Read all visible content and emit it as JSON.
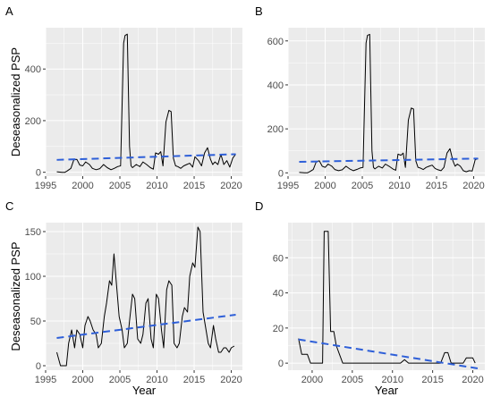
{
  "chart_data": [
    {
      "type": "line",
      "tag": "A",
      "xlabel": "",
      "ylabel": "Deseasonalized PSP",
      "xlim": [
        1995,
        2021.5
      ],
      "ylim": [
        -15,
        560
      ],
      "xticks": [
        1995,
        2000,
        2005,
        2010,
        2015,
        2020
      ],
      "yticks": [
        0,
        200,
        400
      ],
      "series": [
        {
          "x": [
            1996.5,
            1997.2,
            1997.6,
            1997.9,
            1998.4,
            1998.8,
            1999.2,
            1999.6,
            2000.0,
            2000.4,
            2000.9,
            2001.3,
            2001.8,
            2002.3,
            2002.8,
            2003.3,
            2003.8,
            2004.3,
            2004.7,
            2005.1,
            2005.5,
            2005.7,
            2006.0,
            2006.3,
            2006.5,
            2006.7,
            2007.2,
            2007.7,
            2008.1,
            2008.6,
            2009.1,
            2009.5,
            2009.8,
            2010.2,
            2010.5,
            2010.8,
            2011.2,
            2011.6,
            2011.9,
            2012.2,
            2012.5,
            2012.8,
            2013.2,
            2013.6,
            2014.0,
            2014.4,
            2014.8,
            2015.1,
            2015.6,
            2016.0,
            2016.4,
            2016.8,
            2017.2,
            2017.5,
            2017.8,
            2018.2,
            2018.6,
            2019.0,
            2019.4,
            2019.8,
            2020.2,
            2020.6
          ],
          "y": [
            2,
            0,
            0,
            5,
            15,
            48,
            50,
            28,
            25,
            40,
            30,
            15,
            10,
            14,
            30,
            18,
            10,
            16,
            22,
            25,
            500,
            530,
            535,
            100,
            25,
            18,
            30,
            22,
            40,
            30,
            18,
            12,
            75,
            70,
            80,
            25,
            195,
            240,
            235,
            55,
            25,
            22,
            15,
            25,
            30,
            35,
            20,
            60,
            45,
            25,
            75,
            95,
            50,
            30,
            40,
            30,
            70,
            30,
            45,
            20,
            55,
            70
          ]
        }
      ],
      "trend": {
        "x": [
          1996.5,
          2020.6
        ],
        "y": [
          48,
          70
        ],
        "color": "#2E5FD8"
      }
    },
    {
      "type": "line",
      "tag": "B",
      "xlabel": "",
      "ylabel": "",
      "xlim": [
        1995,
        2021.5
      ],
      "ylim": [
        -15,
        660
      ],
      "xticks": [
        1995,
        2000,
        2005,
        2010,
        2015,
        2020
      ],
      "yticks": [
        0,
        200,
        400,
        600
      ],
      "series": [
        {
          "x": [
            1996.5,
            1997.2,
            1997.6,
            1997.9,
            1998.4,
            1998.8,
            1999.2,
            1999.6,
            2000.0,
            2000.4,
            2000.9,
            2001.3,
            2001.8,
            2002.3,
            2002.8,
            2003.3,
            2003.8,
            2004.3,
            2004.7,
            2005.1,
            2005.5,
            2005.7,
            2006.0,
            2006.3,
            2006.5,
            2006.7,
            2007.2,
            2007.7,
            2008.1,
            2008.6,
            2009.1,
            2009.5,
            2009.8,
            2010.2,
            2010.5,
            2010.8,
            2011.2,
            2011.6,
            2011.9,
            2012.2,
            2012.5,
            2012.8,
            2013.2,
            2013.6,
            2014.0,
            2014.4,
            2014.8,
            2015.1,
            2015.6,
            2016.0,
            2016.4,
            2016.8,
            2017.2,
            2017.5,
            2017.8,
            2018.2,
            2018.6,
            2019.0,
            2019.4,
            2019.8,
            2020.2,
            2020.6
          ],
          "y": [
            2,
            0,
            0,
            5,
            15,
            50,
            55,
            30,
            25,
            40,
            30,
            15,
            10,
            14,
            30,
            18,
            10,
            16,
            22,
            25,
            590,
            625,
            630,
            100,
            25,
            18,
            30,
            22,
            40,
            30,
            18,
            12,
            85,
            80,
            90,
            25,
            240,
            295,
            290,
            55,
            25,
            22,
            15,
            25,
            30,
            35,
            20,
            15,
            10,
            25,
            90,
            110,
            55,
            30,
            40,
            30,
            10,
            5,
            10,
            8,
            60,
            65
          ]
        }
      ],
      "trend": {
        "x": [
          1996.5,
          2020.6
        ],
        "y": [
          50,
          65
        ],
        "color": "#2E5FD8"
      }
    },
    {
      "type": "line",
      "tag": "C",
      "xlabel": "Year",
      "ylabel": "Deseasonalized PSP",
      "xlim": [
        1995,
        2021.5
      ],
      "ylim": [
        -5,
        160
      ],
      "xticks": [
        1995,
        2000,
        2005,
        2010,
        2015,
        2020
      ],
      "yticks": [
        0,
        50,
        100,
        150
      ],
      "series": [
        {
          "x": [
            1996.5,
            1997.0,
            1997.3,
            1997.8,
            1998.1,
            1998.5,
            1998.9,
            1999.2,
            1999.6,
            2000.0,
            2000.3,
            2000.7,
            2001.0,
            2001.4,
            2001.8,
            2002.1,
            2002.5,
            2002.9,
            2003.2,
            2003.6,
            2003.9,
            2004.2,
            2004.6,
            2004.9,
            2005.3,
            2005.6,
            2006.0,
            2006.3,
            2006.7,
            2007.0,
            2007.4,
            2007.8,
            2008.1,
            2008.5,
            2008.8,
            2009.2,
            2009.5,
            2009.9,
            2010.2,
            2010.6,
            2010.9,
            2011.3,
            2011.6,
            2012.0,
            2012.3,
            2012.7,
            2013.0,
            2013.4,
            2013.7,
            2014.1,
            2014.4,
            2014.8,
            2015.1,
            2015.5,
            2015.8,
            2016.2,
            2016.5,
            2016.9,
            2017.2,
            2017.6,
            2017.9,
            2018.3,
            2018.6,
            2019.0,
            2019.3,
            2019.7,
            2020.0,
            2020.4
          ],
          "y": [
            15,
            0,
            0,
            0,
            25,
            40,
            20,
            40,
            35,
            20,
            45,
            55,
            50,
            40,
            35,
            20,
            25,
            55,
            70,
            95,
            90,
            125,
            85,
            55,
            40,
            20,
            25,
            50,
            80,
            75,
            30,
            25,
            35,
            70,
            75,
            30,
            20,
            80,
            75,
            40,
            20,
            85,
            95,
            90,
            25,
            20,
            25,
            55,
            65,
            60,
            100,
            115,
            110,
            155,
            150,
            60,
            45,
            25,
            20,
            45,
            30,
            15,
            15,
            20,
            20,
            15,
            20,
            22
          ]
        }
      ],
      "trend": {
        "x": [
          1996.5,
          2020.6
        ],
        "y": [
          31,
          57
        ],
        "color": "#2E5FD8"
      }
    },
    {
      "type": "line",
      "tag": "D",
      "xlabel": "Year",
      "ylabel": "",
      "xlim": [
        1997,
        2021.5
      ],
      "ylim": [
        -4,
        80
      ],
      "xticks": [
        2000,
        2005,
        2010,
        2015,
        2020
      ],
      "yticks": [
        0,
        20,
        40,
        60
      ],
      "series": [
        {
          "x": [
            1998.3,
            1998.7,
            1999.0,
            1999.4,
            1999.8,
            2000.1,
            2000.5,
            2000.9,
            2001.3,
            2001.5,
            2001.8,
            2002.0,
            2002.3,
            2002.7,
            2003.0,
            2003.4,
            2003.8,
            2004.2,
            2005.0,
            2006.0,
            2007.0,
            2008.0,
            2009.0,
            2010.0,
            2011.0,
            2011.5,
            2012.0,
            2013.0,
            2014.0,
            2015.0,
            2016.0,
            2016.5,
            2016.9,
            2017.3,
            2018.0,
            2018.8,
            2019.2,
            2019.6,
            2020.0,
            2020.3
          ],
          "y": [
            14,
            5,
            5,
            5,
            0,
            0,
            0,
            0,
            0,
            75,
            75,
            75,
            18,
            18,
            10,
            5,
            0,
            0,
            0,
            0,
            0,
            0,
            0,
            0,
            0,
            2,
            0,
            0,
            0,
            0,
            0,
            6,
            6,
            0,
            0,
            0,
            3,
            3,
            3,
            0
          ]
        }
      ],
      "trend": {
        "x": [
          1998.3,
          2020.6
        ],
        "y": [
          13.5,
          -3
        ],
        "color": "#2E5FD8"
      }
    }
  ]
}
